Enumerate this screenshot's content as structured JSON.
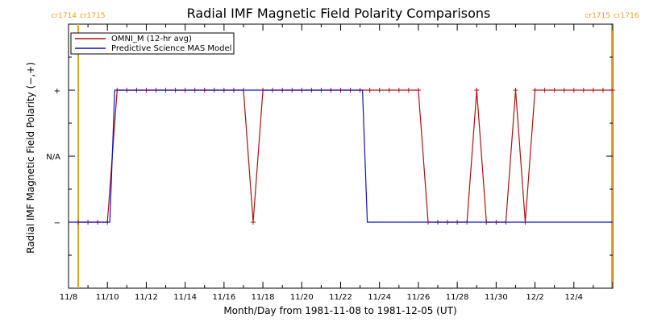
{
  "chart_data": {
    "type": "line",
    "title": "Radial IMF Magnetic Field Polarity Comparisons",
    "xlabel": "Month/Day from 1981-11-08 to 1981-12-05 (UT)",
    "ylabel": "Radial IMF Magnetic Field Polarity (−,+)",
    "xlim": [
      "1981-11-08",
      "1981-12-06"
    ],
    "ylim": [
      -2,
      2
    ],
    "x_ticks": [
      "11/8",
      "11/10",
      "11/12",
      "11/14",
      "11/16",
      "11/18",
      "11/20",
      "11/22",
      "11/24",
      "11/26",
      "11/28",
      "11/30",
      "12/2",
      "12/4"
    ],
    "y_ticks": [
      {
        "value": 1,
        "label": "+"
      },
      {
        "value": 0,
        "label": "N/A"
      },
      {
        "value": -1,
        "label": "−"
      }
    ],
    "carrington_markers": [
      {
        "date": "1981-11-08 12:00",
        "left_label": "cr1714",
        "right_label": "cr1715",
        "color": "#e8a020"
      },
      {
        "date": "1981-12-05 23:00",
        "left_label": "cr1715",
        "right_label": "cr1716",
        "color": "#e8a020"
      }
    ],
    "legend_position": "top-left",
    "series": [
      {
        "name": "OMNI_M (12-hr avg)",
        "color": "#b01010",
        "markers": true,
        "points": [
          [
            "1981-11-08 12:00",
            -1
          ],
          [
            "1981-11-09 00:00",
            -1
          ],
          [
            "1981-11-09 12:00",
            -1
          ],
          [
            "1981-11-10 00:00",
            -1
          ],
          [
            "1981-11-10 12:00",
            1
          ],
          [
            "1981-11-11 00:00",
            1
          ],
          [
            "1981-11-11 12:00",
            1
          ],
          [
            "1981-11-12 00:00",
            1
          ],
          [
            "1981-11-12 12:00",
            1
          ],
          [
            "1981-11-13 00:00",
            1
          ],
          [
            "1981-11-13 12:00",
            1
          ],
          [
            "1981-11-14 00:00",
            1
          ],
          [
            "1981-11-14 12:00",
            1
          ],
          [
            "1981-11-15 00:00",
            1
          ],
          [
            "1981-11-15 12:00",
            1
          ],
          [
            "1981-11-16 00:00",
            1
          ],
          [
            "1981-11-16 12:00",
            1
          ],
          [
            "1981-11-17 00:00",
            1
          ],
          [
            "1981-11-17 12:00",
            -1
          ],
          [
            "1981-11-18 00:00",
            1
          ],
          [
            "1981-11-18 12:00",
            1
          ],
          [
            "1981-11-19 00:00",
            1
          ],
          [
            "1981-11-19 12:00",
            1
          ],
          [
            "1981-11-20 00:00",
            1
          ],
          [
            "1981-11-20 12:00",
            1
          ],
          [
            "1981-11-21 00:00",
            1
          ],
          [
            "1981-11-21 12:00",
            1
          ],
          [
            "1981-11-22 00:00",
            1
          ],
          [
            "1981-11-22 12:00",
            1
          ],
          [
            "1981-11-23 00:00",
            1
          ],
          [
            "1981-11-23 12:00",
            1
          ],
          [
            "1981-11-24 00:00",
            1
          ],
          [
            "1981-11-24 12:00",
            1
          ],
          [
            "1981-11-25 00:00",
            1
          ],
          [
            "1981-11-25 12:00",
            1
          ],
          [
            "1981-11-26 00:00",
            1
          ],
          [
            "1981-11-26 12:00",
            -1
          ],
          [
            "1981-11-27 00:00",
            -1
          ],
          [
            "1981-11-27 12:00",
            -1
          ],
          [
            "1981-11-28 00:00",
            -1
          ],
          [
            "1981-11-28 12:00",
            -1
          ],
          [
            "1981-11-29 00:00",
            1
          ],
          [
            "1981-11-29 12:00",
            -1
          ],
          [
            "1981-11-30 00:00",
            -1
          ],
          [
            "1981-11-30 12:00",
            -1
          ],
          [
            "1981-12-01 00:00",
            1
          ],
          [
            "1981-12-01 12:00",
            -1
          ],
          [
            "1981-12-02 00:00",
            1
          ],
          [
            "1981-12-02 12:00",
            1
          ],
          [
            "1981-12-03 00:00",
            1
          ],
          [
            "1981-12-03 12:00",
            1
          ],
          [
            "1981-12-04 00:00",
            1
          ],
          [
            "1981-12-04 12:00",
            1
          ],
          [
            "1981-12-05 00:00",
            1
          ],
          [
            "1981-12-05 12:00",
            1
          ],
          [
            "1981-12-06 00:00",
            1
          ]
        ]
      },
      {
        "name": "Predictive Science MAS Model",
        "color": "#1010c0",
        "markers": false,
        "points": [
          [
            "1981-11-08 00:00",
            -1
          ],
          [
            "1981-11-10 03:00",
            -1
          ],
          [
            "1981-11-10 09:00",
            1
          ],
          [
            "1981-11-23 03:00",
            1
          ],
          [
            "1981-11-23 09:00",
            -1
          ],
          [
            "1981-12-06 00:00",
            -1
          ]
        ]
      }
    ]
  }
}
